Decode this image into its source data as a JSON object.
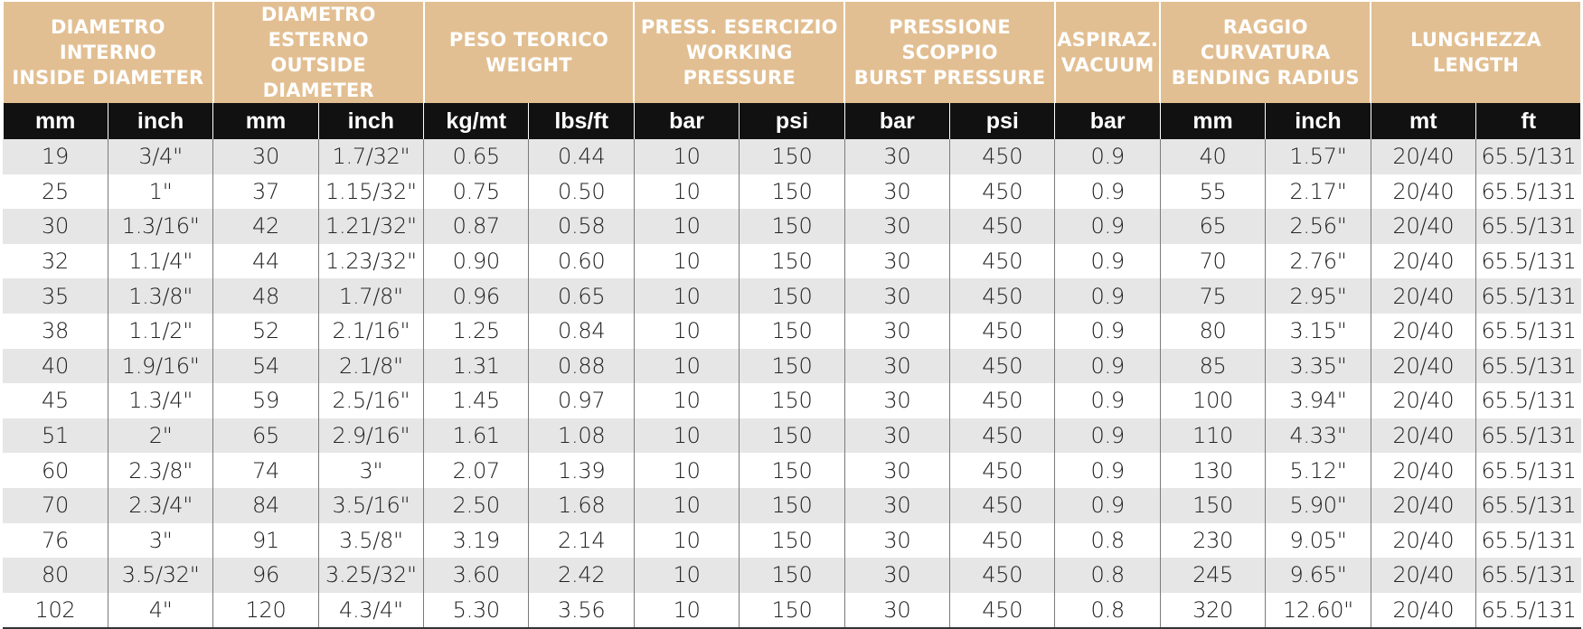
{
  "colors": {
    "group_header_bg": "#e2bf92",
    "unit_header_bg": "#111111",
    "stripe": "#e6e6e6"
  },
  "groups": [
    {
      "line1": "DIAMETRO INTERNO",
      "line2": "INSIDE DIAMETER"
    },
    {
      "line1": "DIAMETRO ESTERNO",
      "line2": "OUTSIDE DIAMETER"
    },
    {
      "line1": "PESO TEORICO",
      "line2": "WEIGHT"
    },
    {
      "line1": "PRESS. ESERCIZIO",
      "line2": "WORKING PRESSURE"
    },
    {
      "line1": "PRESSIONE SCOPPIO",
      "line2": "BURST PRESSURE"
    },
    {
      "line1": "ASPIRAZ.",
      "line2": "VACUUM"
    },
    {
      "line1": "RAGGIO CURVATURA",
      "line2": "BENDING RADIUS"
    },
    {
      "line1": "LUNGHEZZA",
      "line2": "LENGTH"
    }
  ],
  "units": [
    "mm",
    "inch",
    "mm",
    "inch",
    "kg/mt",
    "lbs/ft",
    "bar",
    "psi",
    "bar",
    "psi",
    "bar",
    "mm",
    "inch",
    "mt",
    "ft"
  ],
  "rows": [
    [
      "19",
      "3/4\"",
      "30",
      "1.7/32\"",
      "0.65",
      "0.44",
      "10",
      "150",
      "30",
      "450",
      "0.9",
      "40",
      "1.57\"",
      "20/40",
      "65.5/131"
    ],
    [
      "25",
      "1\"",
      "37",
      "1.15/32\"",
      "0.75",
      "0.50",
      "10",
      "150",
      "30",
      "450",
      "0.9",
      "55",
      "2.17\"",
      "20/40",
      "65.5/131"
    ],
    [
      "30",
      "1.3/16\"",
      "42",
      "1.21/32\"",
      "0.87",
      "0.58",
      "10",
      "150",
      "30",
      "450",
      "0.9",
      "65",
      "2.56\"",
      "20/40",
      "65.5/131"
    ],
    [
      "32",
      "1.1/4\"",
      "44",
      "1.23/32\"",
      "0.90",
      "0.60",
      "10",
      "150",
      "30",
      "450",
      "0.9",
      "70",
      "2.76\"",
      "20/40",
      "65.5/131"
    ],
    [
      "35",
      "1.3/8\"",
      "48",
      "1.7/8\"",
      "0.96",
      "0.65",
      "10",
      "150",
      "30",
      "450",
      "0.9",
      "75",
      "2.95\"",
      "20/40",
      "65.5/131"
    ],
    [
      "38",
      "1.1/2\"",
      "52",
      "2.1/16\"",
      "1.25",
      "0.84",
      "10",
      "150",
      "30",
      "450",
      "0.9",
      "80",
      "3.15\"",
      "20/40",
      "65.5/131"
    ],
    [
      "40",
      "1.9/16\"",
      "54",
      "2.1/8\"",
      "1.31",
      "0.88",
      "10",
      "150",
      "30",
      "450",
      "0.9",
      "85",
      "3.35\"",
      "20/40",
      "65.5/131"
    ],
    [
      "45",
      "1.3/4\"",
      "59",
      "2.5/16\"",
      "1.45",
      "0.97",
      "10",
      "150",
      "30",
      "450",
      "0.9",
      "100",
      "3.94\"",
      "20/40",
      "65.5/131"
    ],
    [
      "51",
      "2\"",
      "65",
      "2.9/16\"",
      "1.61",
      "1.08",
      "10",
      "150",
      "30",
      "450",
      "0.9",
      "110",
      "4.33\"",
      "20/40",
      "65.5/131"
    ],
    [
      "60",
      "2.3/8\"",
      "74",
      "3\"",
      "2.07",
      "1.39",
      "10",
      "150",
      "30",
      "450",
      "0.9",
      "130",
      "5.12\"",
      "20/40",
      "65.5/131"
    ],
    [
      "70",
      "2.3/4\"",
      "84",
      "3.5/16\"",
      "2.50",
      "1.68",
      "10",
      "150",
      "30",
      "450",
      "0.9",
      "150",
      "5.90\"",
      "20/40",
      "65.5/131"
    ],
    [
      "76",
      "3\"",
      "91",
      "3.5/8\"",
      "3.19",
      "2.14",
      "10",
      "150",
      "30",
      "450",
      "0.8",
      "230",
      "9.05\"",
      "20/40",
      "65.5/131"
    ],
    [
      "80",
      "3.5/32\"",
      "96",
      "3.25/32\"",
      "3.60",
      "2.42",
      "10",
      "150",
      "30",
      "450",
      "0.8",
      "245",
      "9.65\"",
      "20/40",
      "65.5/131"
    ],
    [
      "102",
      "4\"",
      "120",
      "4.3/4\"",
      "5.30",
      "3.56",
      "10",
      "150",
      "30",
      "450",
      "0.8",
      "320",
      "12.60\"",
      "20/40",
      "65.5/131"
    ]
  ]
}
